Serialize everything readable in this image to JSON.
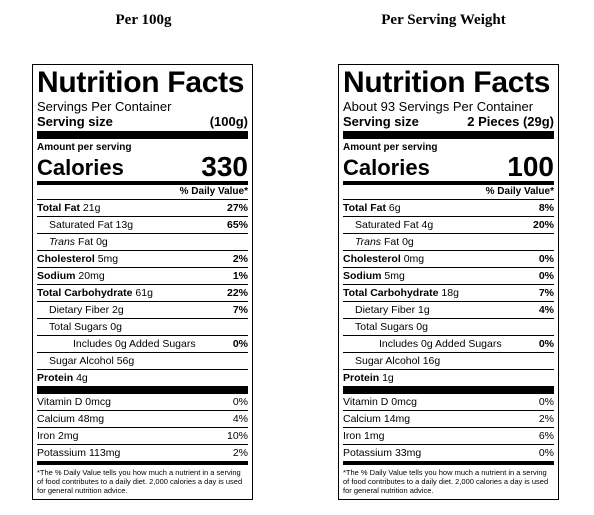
{
  "labels": [
    {
      "caption": "Per 100g",
      "title": "Nutrition Facts",
      "servings_per_container": "Servings Per Container",
      "serving_size_label": "Serving size",
      "serving_size_value": "(100g)",
      "amount_per_serving": "Amount per serving",
      "calories_label": "Calories",
      "calories_value": "330",
      "dv_header": "% Daily Value*",
      "total_fat": {
        "label": "Total Fat",
        "amount": "21g",
        "dv": "27%"
      },
      "saturated_fat": {
        "label": "Saturated Fat",
        "amount": "13g",
        "dv": "65%"
      },
      "trans_fat": {
        "label": "Trans",
        "suffix": "Fat",
        "amount": "0g"
      },
      "cholesterol": {
        "label": "Cholesterol",
        "amount": "5mg",
        "dv": "2%"
      },
      "sodium": {
        "label": "Sodium",
        "amount": "20mg",
        "dv": "1%"
      },
      "total_carbohydrate": {
        "label": "Total Carbohydrate",
        "amount": "61g",
        "dv": "22%"
      },
      "dietary_fiber": {
        "label": "Dietary Fiber",
        "amount": "2g",
        "dv": "7%"
      },
      "total_sugars": {
        "label": "Total Sugars",
        "amount": "0g"
      },
      "added_sugars": {
        "label": "Includes 0g Added Sugars",
        "dv": "0%"
      },
      "sugar_alcohol": {
        "label": "Sugar Alcohol",
        "amount": "56g"
      },
      "protein": {
        "label": "Protein",
        "amount": "4g"
      },
      "vitamin_d": {
        "label": "Vitamin D",
        "amount": "0mcg",
        "dv": "0%"
      },
      "calcium": {
        "label": "Calcium",
        "amount": "48mg",
        "dv": "4%"
      },
      "iron": {
        "label": "Iron",
        "amount": "2mg",
        "dv": "10%"
      },
      "potassium": {
        "label": "Potassium",
        "amount": "113mg",
        "dv": "2%"
      },
      "footnote": "*The % Daily Value tells you how much a nutrient in a serving of food contributes to a daily diet. 2,000 calories a day is used for general nutrition advice."
    },
    {
      "caption": "Per Serving Weight",
      "title": "Nutrition Facts",
      "servings_per_container": "About 93 Servings Per Container",
      "serving_size_label": "Serving size",
      "serving_size_value": "2 Pieces (29g)",
      "amount_per_serving": "Amount per serving",
      "calories_label": "Calories",
      "calories_value": "100",
      "dv_header": "% Daily Value*",
      "total_fat": {
        "label": "Total Fat",
        "amount": "6g",
        "dv": "8%"
      },
      "saturated_fat": {
        "label": "Saturated Fat",
        "amount": "4g",
        "dv": "20%"
      },
      "trans_fat": {
        "label": "Trans",
        "suffix": "Fat",
        "amount": "0g"
      },
      "cholesterol": {
        "label": "Cholesterol",
        "amount": "0mg",
        "dv": "0%"
      },
      "sodium": {
        "label": "Sodium",
        "amount": "5mg",
        "dv": "0%"
      },
      "total_carbohydrate": {
        "label": "Total Carbohydrate",
        "amount": "18g",
        "dv": "7%"
      },
      "dietary_fiber": {
        "label": "Dietary Fiber",
        "amount": "1g",
        "dv": "4%"
      },
      "total_sugars": {
        "label": "Total Sugars",
        "amount": "0g"
      },
      "added_sugars": {
        "label": "Includes 0g Added Sugars",
        "dv": "0%"
      },
      "sugar_alcohol": {
        "label": "Sugar Alcohol",
        "amount": "16g"
      },
      "protein": {
        "label": "Protein",
        "amount": "1g"
      },
      "vitamin_d": {
        "label": "Vitamin D",
        "amount": "0mcg",
        "dv": "0%"
      },
      "calcium": {
        "label": "Calcium",
        "amount": "14mg",
        "dv": "2%"
      },
      "iron": {
        "label": "Iron",
        "amount": "1mg",
        "dv": "6%"
      },
      "potassium": {
        "label": "Potassium",
        "amount": "33mg",
        "dv": "0%"
      },
      "footnote": "*The % Daily Value tells you how much a nutrient in a serving of food contributes to a daily diet. 2,000 calories a day is used for general nutrition advice."
    }
  ]
}
